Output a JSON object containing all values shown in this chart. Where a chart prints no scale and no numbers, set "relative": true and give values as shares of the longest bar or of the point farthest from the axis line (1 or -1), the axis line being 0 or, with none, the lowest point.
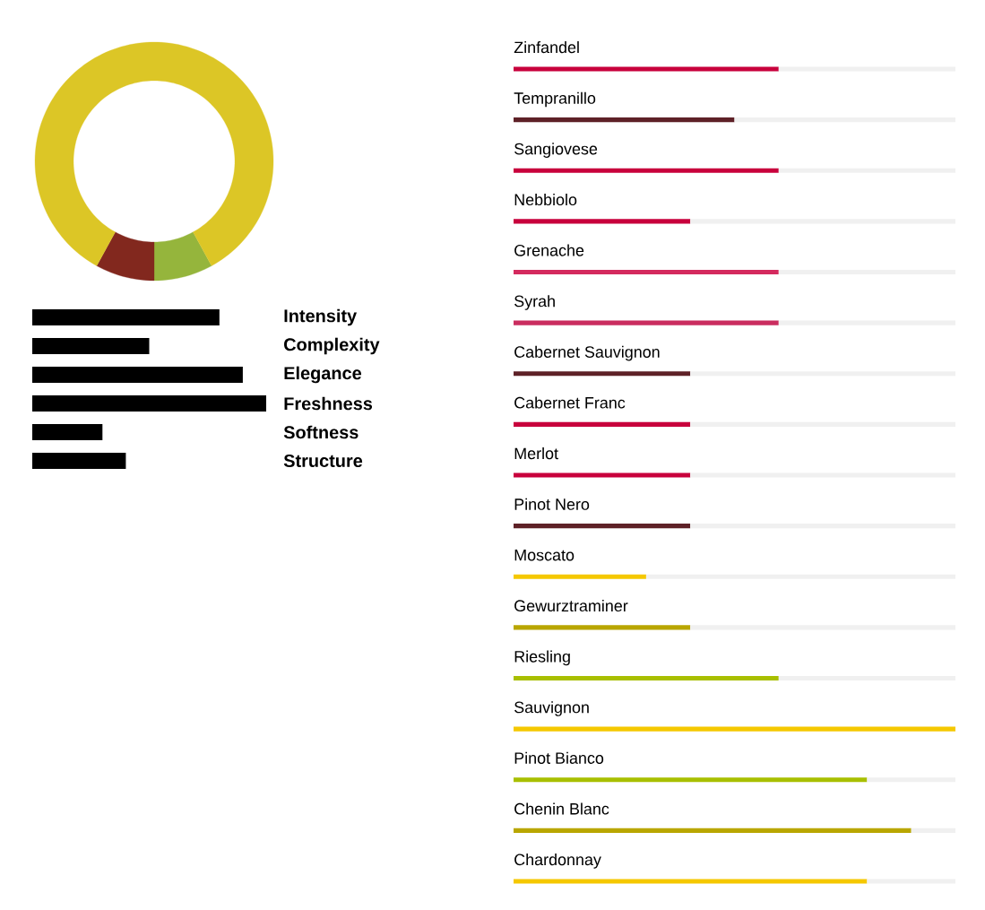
{
  "chart_data": [
    {
      "type": "donut",
      "categories": [
        null,
        null,
        null
      ],
      "values": [
        8,
        8,
        84
      ],
      "colors": [
        "#95b53c",
        "#82281e",
        "#dcc626"
      ]
    },
    {
      "type": "bar",
      "orientation": "horizontal",
      "relative": true,
      "categories": [
        "Intensity",
        "Complexity",
        "Elegance",
        "Freshness",
        "Softness",
        "Structure"
      ],
      "series": [
        {
          "color": "#000000",
          "values": [
            0.8,
            0.5,
            0.9,
            1,
            0.3,
            0.4
          ]
        }
      ]
    },
    {
      "type": "bar",
      "orientation": "horizontal",
      "relative": true,
      "stacked": true,
      "categories": [
        "Zinfandel",
        "Tempranillo",
        "Sangiovese",
        "Nebbiolo",
        "Grenache",
        "Syrah",
        "Cabernet Sauvignon",
        "Cabernet Franc",
        "Merlot",
        "Pinot Nero",
        "Moscato",
        "Gewurztraminer",
        "Riesling",
        "Sauvignon",
        "Pinot Bianco",
        "Chenin Blanc",
        "Chardonnay"
      ],
      "series": [
        {
          "colors": [
            "#c8003c",
            "#5e2127",
            "#c8003c",
            "#c8003c",
            "#d42a5e",
            "#ca2d5f",
            "#5e2127",
            "#c8003c",
            "#c8003c",
            "#5e2127",
            "#f5c800",
            "#b9a600",
            "#a8bf00",
            "#f5c800",
            "#a8bf00",
            "#b9a600",
            "#f5c800"
          ],
          "values": [
            0.6,
            0.5,
            0.6,
            0.4,
            0.6,
            0.6,
            0.4,
            0.4,
            0.4,
            0.4,
            0.3,
            0.4,
            0.6,
            1,
            0.8,
            0.9,
            0.8
          ]
        },
        {
          "color": "#f0f0f0",
          "values": [
            0.4,
            0.5,
            0.4,
            0.6,
            0.4,
            0.4,
            0.6,
            0.6,
            0.6,
            0.6,
            0.7,
            0.6,
            0.4,
            0,
            0.2,
            0.1,
            0.2
          ]
        }
      ]
    }
  ]
}
